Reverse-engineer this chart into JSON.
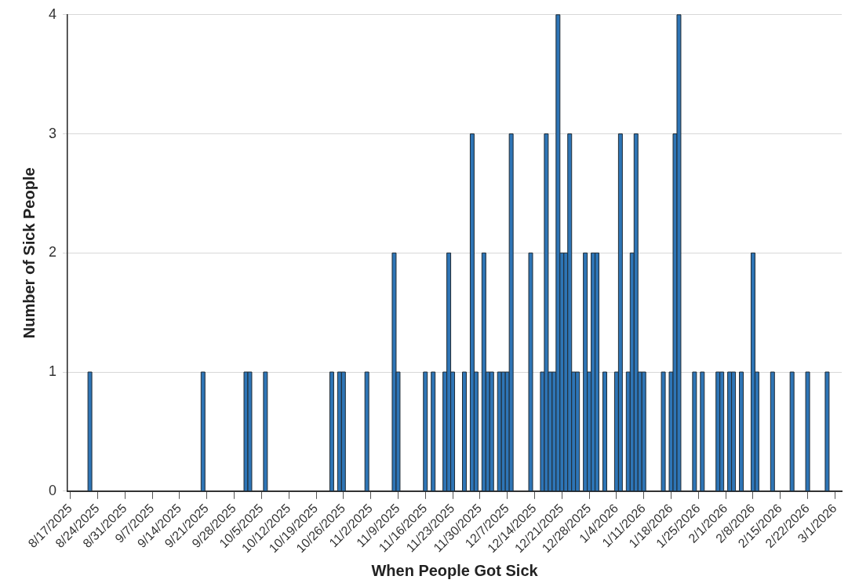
{
  "chart_data": {
    "type": "bar",
    "xlabel": "When People Got Sick",
    "ylabel": "Number of Sick People",
    "x": [
      "2025-08-22",
      "2025-09-20",
      "2025-10-01",
      "2025-10-02",
      "2025-10-06",
      "2025-10-23",
      "2025-10-25",
      "2025-10-26",
      "2025-11-01",
      "2025-11-08",
      "2025-11-09",
      "2025-11-16",
      "2025-11-18",
      "2025-11-21",
      "2025-11-22",
      "2025-11-23",
      "2025-11-26",
      "2025-11-28",
      "2025-11-29",
      "2025-12-01",
      "2025-12-02",
      "2025-12-03",
      "2025-12-05",
      "2025-12-06",
      "2025-12-07",
      "2025-12-08",
      "2025-12-13",
      "2025-12-16",
      "2025-12-17",
      "2025-12-18",
      "2025-12-19",
      "2025-12-20",
      "2025-12-21",
      "2025-12-22",
      "2025-12-23",
      "2025-12-24",
      "2025-12-25",
      "2025-12-27",
      "2025-12-28",
      "2025-12-29",
      "2025-12-30",
      "2026-01-01",
      "2026-01-04",
      "2026-01-05",
      "2026-01-07",
      "2026-01-08",
      "2026-01-09",
      "2026-01-10",
      "2026-01-11",
      "2026-01-16",
      "2026-01-18",
      "2026-01-19",
      "2026-01-20",
      "2026-01-24",
      "2026-01-26",
      "2026-01-30",
      "2026-01-31",
      "2026-02-02",
      "2026-02-03",
      "2026-02-05",
      "2026-02-08",
      "2026-02-09",
      "2026-02-13",
      "2026-02-18",
      "2026-02-22",
      "2026-02-27"
    ],
    "values": [
      1,
      1,
      1,
      1,
      1,
      1,
      1,
      1,
      1,
      2,
      1,
      1,
      1,
      1,
      2,
      1,
      1,
      3,
      1,
      2,
      1,
      1,
      1,
      1,
      1,
      3,
      2,
      1,
      3,
      1,
      1,
      4,
      2,
      2,
      3,
      1,
      1,
      2,
      1,
      2,
      2,
      1,
      1,
      3,
      1,
      2,
      3,
      1,
      1,
      1,
      1,
      3,
      4,
      1,
      1,
      1,
      1,
      1,
      1,
      1,
      2,
      1,
      1,
      1,
      1,
      1
    ],
    "color": "#2e75b6",
    "xlim": [
      "2025-08-16T06:00",
      "2026-03-02T18:00"
    ],
    "xticks": [
      {
        "value": "2025-08-17",
        "label": "8/17/2025"
      },
      {
        "value": "2025-08-24",
        "label": "8/24/2025"
      },
      {
        "value": "2025-08-31",
        "label": "8/31/2025"
      },
      {
        "value": "2025-09-07",
        "label": "9/7/2025"
      },
      {
        "value": "2025-09-14",
        "label": "9/14/2025"
      },
      {
        "value": "2025-09-21",
        "label": "9/21/2025"
      },
      {
        "value": "2025-09-28",
        "label": "9/28/2025"
      },
      {
        "value": "2025-10-05",
        "label": "10/5/2025"
      },
      {
        "value": "2025-10-12",
        "label": "10/12/2025"
      },
      {
        "value": "2025-10-19",
        "label": "10/19/2025"
      },
      {
        "value": "2025-10-26",
        "label": "10/26/2025"
      },
      {
        "value": "2025-11-02",
        "label": "11/2/2025"
      },
      {
        "value": "2025-11-09",
        "label": "11/9/2025"
      },
      {
        "value": "2025-11-16",
        "label": "11/16/2025"
      },
      {
        "value": "2025-11-23",
        "label": "11/23/2025"
      },
      {
        "value": "2025-11-30",
        "label": "11/30/2025"
      },
      {
        "value": "2025-12-07",
        "label": "12/7/2025"
      },
      {
        "value": "2025-12-14",
        "label": "12/14/2025"
      },
      {
        "value": "2025-12-21",
        "label": "12/21/2025"
      },
      {
        "value": "2025-12-28",
        "label": "12/28/2025"
      },
      {
        "value": "2026-01-04",
        "label": "1/4/2026"
      },
      {
        "value": "2026-01-11",
        "label": "1/11/2026"
      },
      {
        "value": "2026-01-18",
        "label": "1/18/2026"
      },
      {
        "value": "2026-01-25",
        "label": "1/25/2026"
      },
      {
        "value": "2026-02-01",
        "label": "2/1/2026"
      },
      {
        "value": "2026-02-08",
        "label": "2/8/2026"
      },
      {
        "value": "2026-02-15",
        "label": "2/15/2026"
      },
      {
        "value": "2026-02-22",
        "label": "2/22/2026"
      },
      {
        "value": "2026-03-01",
        "label": "3/1/2026"
      }
    ],
    "ylim": [
      0,
      4
    ],
    "yticks": [
      0,
      1,
      2,
      3,
      4
    ],
    "grid": "y"
  }
}
